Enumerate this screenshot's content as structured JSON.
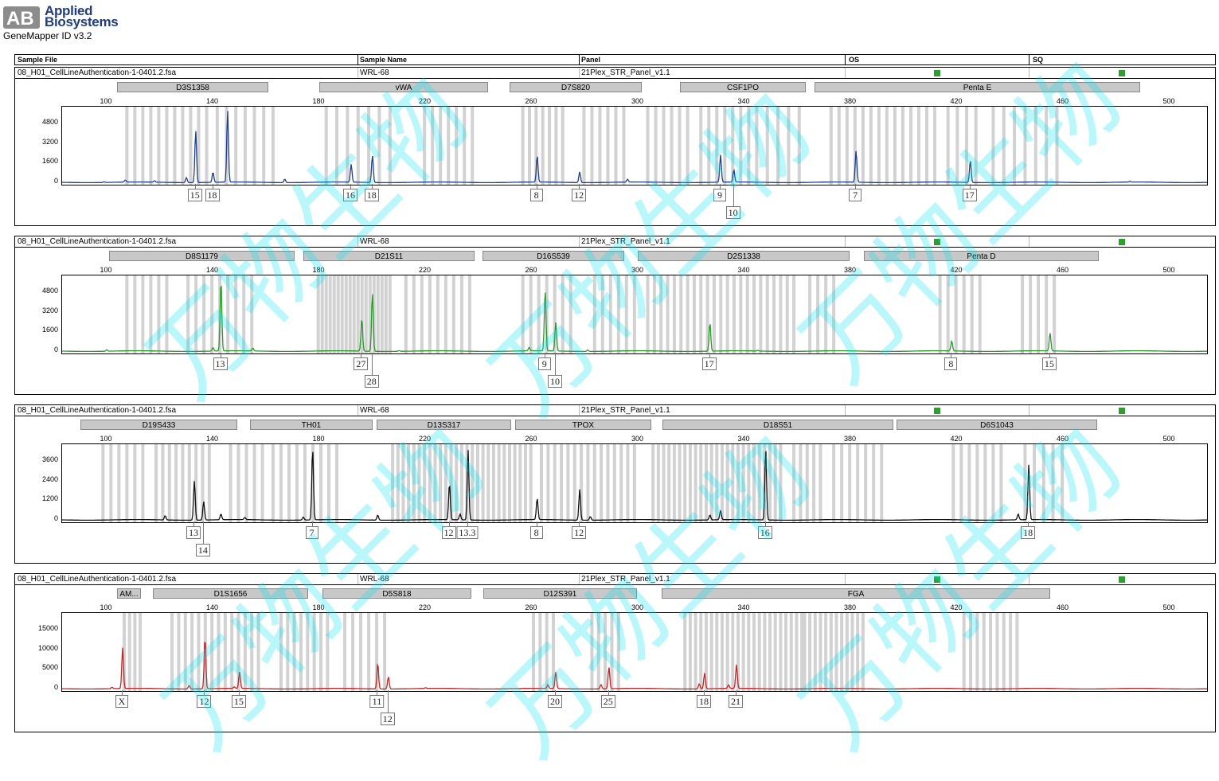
{
  "app": {
    "brand_line1": "Applied",
    "brand_line2": "Biosystems",
    "logo_letters": "AB",
    "version": "GeneMapper ID v3.2"
  },
  "columns": {
    "sample_file": "Sample File",
    "sample_name": "Sample Name",
    "panel": "Panel",
    "os": "OS",
    "sq": "SQ"
  },
  "ruler_ticks": [
    "100",
    "140",
    "180",
    "220",
    "260",
    "300",
    "340",
    "380",
    "420",
    "460",
    "500"
  ],
  "watermark": "万物生物",
  "panels": [
    {
      "sample_file": "08_H01_CellLineAuthentication-1-0401.2.fsa",
      "sample_name": "WRL-68",
      "panel": "21Plex_STR_Panel_v1.1",
      "color": "#1f3f8f",
      "y_ticks": [
        "4800",
        "3200",
        "1600",
        "0"
      ],
      "markers": [
        "D3S1358",
        "vWA",
        "D7S820",
        "CSF1PO",
        "Penta E"
      ],
      "alleles": [
        "15",
        "18",
        "16",
        "18",
        "8",
        "12",
        "9",
        "10",
        "7",
        "17"
      ]
    },
    {
      "sample_file": "08_H01_CellLineAuthentication-1-0401.2.fsa",
      "sample_name": "WRL-68",
      "panel": "21Plex_STR_Panel_v1.1",
      "color": "#2a9a2a",
      "y_ticks": [
        "4800",
        "3200",
        "1600",
        "0"
      ],
      "markers": [
        "D8S1179",
        "D21S11",
        "D16S539",
        "D2S1338",
        "Penta D"
      ],
      "alleles": [
        "13",
        "27",
        "28",
        "9",
        "10",
        "17",
        "8",
        "15"
      ]
    },
    {
      "sample_file": "08_H01_CellLineAuthentication-1-0401.2.fsa",
      "sample_name": "WRL-68",
      "panel": "21Plex_STR_Panel_v1.1",
      "color": "#111111",
      "y_ticks": [
        "3600",
        "2400",
        "1200",
        "0"
      ],
      "markers": [
        "D19S433",
        "TH01",
        "D13S317",
        "TPOX",
        "D18S51",
        "D6S1043"
      ],
      "alleles": [
        "13",
        "14",
        "7",
        "12",
        "13.3",
        "8",
        "12",
        "16",
        "18"
      ]
    },
    {
      "sample_file": "08_H01_CellLineAuthentication-1-0401.2.fsa",
      "sample_name": "WRL-68",
      "panel": "21Plex_STR_Panel_v1.1",
      "color": "#cc2222",
      "y_ticks": [
        "15000",
        "10000",
        "5000",
        "0"
      ],
      "markers": [
        "AM...",
        "D1S1656",
        "D5S818",
        "D12S391",
        "FGA"
      ],
      "alleles": [
        "X",
        "12",
        "15",
        "11",
        "12",
        "20",
        "25",
        "18",
        "21"
      ]
    }
  ]
}
